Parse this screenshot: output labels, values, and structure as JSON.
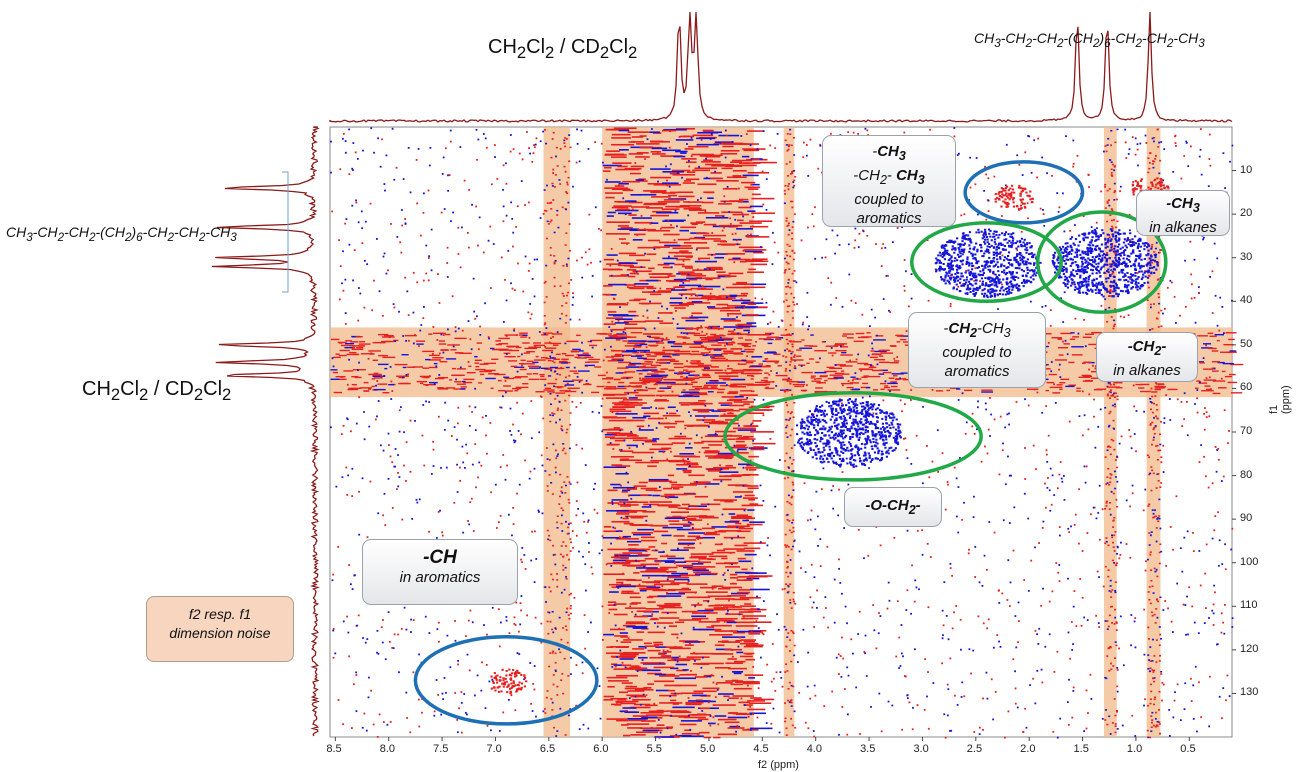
{
  "chart_data": {
    "type": "heatmap",
    "title": "",
    "xlabel": "f2 (ppm)",
    "ylabel": "f1 (ppm)",
    "xlim": [
      8.55,
      0.1
    ],
    "ylim": [
      0,
      140
    ],
    "x_ticks": [
      8.5,
      8.0,
      7.5,
      7.0,
      6.5,
      6.0,
      5.5,
      5.0,
      4.5,
      4.0,
      3.5,
      3.0,
      2.5,
      2.0,
      1.5,
      1.0,
      0.5
    ],
    "x_tick_labels": [
      "8.5",
      "8.0",
      "7.5",
      "7.0",
      "6.5",
      "6.0",
      "5.5",
      "5.0",
      "4.5",
      "4.0",
      "3.5",
      "3.0",
      "2.5",
      "2.0",
      "1.5",
      "1.0",
      "0.5"
    ],
    "y_ticks": [
      10,
      20,
      30,
      40,
      50,
      60,
      70,
      80,
      90,
      100,
      110,
      120,
      130
    ],
    "y_tick_labels": [
      "10",
      "20",
      "30",
      "40",
      "50",
      "60",
      "70",
      "80",
      "90",
      "100",
      "110",
      "120",
      "130"
    ],
    "highlight_bands_f2": [
      [
        6.55,
        6.3
      ],
      [
        6.0,
        4.58
      ],
      [
        4.3,
        4.2
      ],
      [
        1.3,
        1.18
      ],
      [
        0.9,
        0.77
      ]
    ],
    "highlight_band_f1": [
      46,
      62
    ],
    "signals": [
      {
        "region": "-CH3 coupled to aromatics",
        "f2": 2.15,
        "f1": 16,
        "color": "#e62020"
      },
      {
        "region": "-CH3 in alkanes",
        "f2": 0.88,
        "f1": 14,
        "color": "#e62020"
      },
      {
        "region": "-CH2-CH3 coupled to aromatics",
        "f2": 2.4,
        "f1": 31,
        "color": "#1515d8"
      },
      {
        "region": "-CH2- in alkanes",
        "f2": 1.3,
        "f1": 31,
        "color": "#1515d8"
      },
      {
        "region": "-O-CH2-",
        "f2": 3.7,
        "f1": 70,
        "color": "#1515d8"
      },
      {
        "region": "-CH in aromatics",
        "f2": 6.9,
        "f1": 127,
        "color": "#e62020"
      }
    ],
    "ellipses": [
      {
        "cx": 2.05,
        "cy": 15,
        "rx": 0.55,
        "ry": 7,
        "color": "#1f6fb5"
      },
      {
        "cx": 2.4,
        "cy": 31,
        "rx": 0.7,
        "ry": 9,
        "color": "#21a847"
      },
      {
        "cx": 1.32,
        "cy": 31,
        "rx": 0.6,
        "ry": 11.5,
        "color": "#21a847"
      },
      {
        "cx": 3.65,
        "cy": 71,
        "rx": 1.2,
        "ry": 10,
        "color": "#21a847"
      },
      {
        "cx": 6.9,
        "cy": 127,
        "rx": 0.85,
        "ry": 10,
        "color": "#1f6fb5"
      }
    ],
    "projection_f2_peaks": [
      5.28,
      5.18,
      5.12,
      1.55,
      1.27,
      0.87
    ],
    "projection_f1_peaks": [
      14,
      23,
      30,
      32,
      50,
      54,
      57
    ]
  },
  "labels": {
    "solvent_top_html": "CH<sub>2</sub>Cl<sub>2</sub> / CD<sub>2</sub>Cl<sub>2</sub>",
    "solvent_left_html": "CH<sub>2</sub>Cl<sub>2</sub> / CD<sub>2</sub>Cl<sub>2</sub>",
    "alkane_top_html": "CH<sub>3</sub>-CH<sub>2</sub>-CH<sub>2</sub>-(CH<sub>2</sub>)<sub>6</sub>-CH<sub>2</sub>-CH<sub>2</sub>-CH<sub>3</sub>",
    "alkane_left_html": "CH<sub>3</sub>-CH<sub>2</sub>-CH<sub>2</sub>-(CH<sub>2</sub>)<sub>6</sub>-CH<sub>2</sub>-CH<sub>2</sub>-CH<sub>3</sub>",
    "ch3_aromatic_html": "-<b>CH<sub>3</sub></b><br>-CH<sub>2</sub>- <b>CH<sub>3</sub></b><br>coupled to<br>aromatics",
    "ch3_alkane_html": "<b>-CH<sub>3</sub></b><br>in alkanes",
    "ch2_aromatic_html": "-<b>CH<sub>2</sub></b>-CH<sub>3</sub><br>coupled to<br>aromatics",
    "ch2_alkane_html": "<b>-CH<sub>2</sub>-</b><br>in alkanes",
    "och2_html": "<b>-O-CH<sub>2</sub>-</b>",
    "ch_aromatic_html": "<b style=\"font-size:19px\">-CH</b><br>in aromatics",
    "noise_html": "f2 resp. f1<br>dimension noise"
  },
  "colors": {
    "red": "#e62020",
    "blue": "#1515d8",
    "band": "#f2b88a",
    "trace": "#8b1a1a"
  }
}
